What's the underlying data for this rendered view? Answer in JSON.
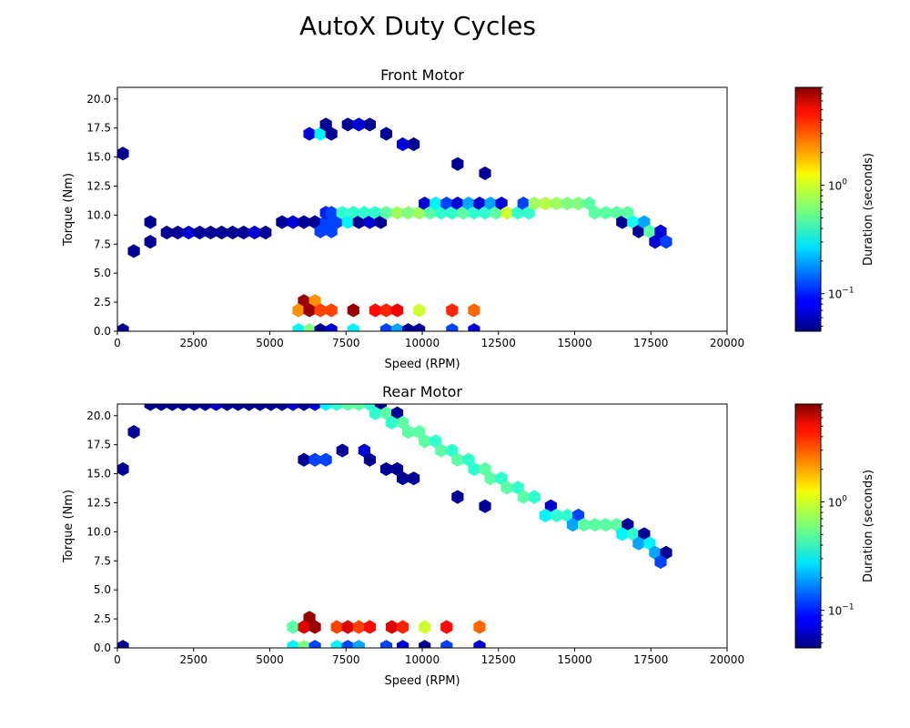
{
  "figure_title": "AutoX Duty Cycles",
  "colormap": "jet",
  "colorbar": {
    "label": "Duration (seconds)",
    "scale": "log",
    "range": [
      0.045,
      8.0
    ],
    "tick_values": [
      0.1,
      1
    ],
    "tick_labels": [
      {
        "base": "10",
        "exp": "−1"
      },
      {
        "base": "10",
        "exp": "0"
      }
    ]
  },
  "chart_data": [
    {
      "type": "heatmap",
      "subtype": "hexbin",
      "title": "Front Motor",
      "xlabel": "Speed (RPM)",
      "ylabel": "Torque (Nm)",
      "xlim": [
        0,
        20000
      ],
      "ylim": [
        0,
        21
      ],
      "xticks": [
        0,
        2500,
        5000,
        7500,
        10000,
        12500,
        15000,
        17500,
        20000
      ],
      "xtick_labels": [
        "0",
        "2500",
        "5000",
        "7500",
        "10000",
        "12500",
        "15000",
        "17500",
        "20000"
      ],
      "yticks": [
        0,
        2.5,
        5,
        7.5,
        10,
        12.5,
        15,
        17.5,
        20
      ],
      "ytick_labels": [
        "0.0",
        "2.5",
        "5.0",
        "7.5",
        "10.0",
        "12.5",
        "15.0",
        "17.5",
        "20.0"
      ],
      "grid": false,
      "value_label": "Duration (seconds)",
      "cells": [
        {
          "x": 180,
          "y": 15.3,
          "v": 0.05
        },
        {
          "x": 180,
          "y": 0.1,
          "v": 0.05
        },
        {
          "x": 540,
          "y": 6.9,
          "v": 0.05
        },
        {
          "x": 1080,
          "y": 9.4,
          "v": 0.05
        },
        {
          "x": 1080,
          "y": 7.7,
          "v": 0.05
        },
        {
          "x": 1620,
          "y": 8.5,
          "v": 0.05
        },
        {
          "x": 1980,
          "y": 8.5,
          "v": 0.05
        },
        {
          "x": 2340,
          "y": 8.5,
          "v": 0.07
        },
        {
          "x": 2700,
          "y": 8.5,
          "v": 0.05
        },
        {
          "x": 3060,
          "y": 8.5,
          "v": 0.05
        },
        {
          "x": 3420,
          "y": 8.5,
          "v": 0.05
        },
        {
          "x": 3780,
          "y": 8.5,
          "v": 0.05
        },
        {
          "x": 4140,
          "y": 8.5,
          "v": 0.05
        },
        {
          "x": 4500,
          "y": 8.5,
          "v": 0.07
        },
        {
          "x": 4860,
          "y": 8.5,
          "v": 0.05
        },
        {
          "x": 5400,
          "y": 9.4,
          "v": 0.05
        },
        {
          "x": 5760,
          "y": 9.4,
          "v": 0.07
        },
        {
          "x": 6120,
          "y": 9.4,
          "v": 0.05
        },
        {
          "x": 6480,
          "y": 9.4,
          "v": 0.05
        },
        {
          "x": 6660,
          "y": 8.6,
          "v": 0.12
        },
        {
          "x": 6840,
          "y": 9.4,
          "v": 0.12
        },
        {
          "x": 6840,
          "y": 10.2,
          "v": 0.1
        },
        {
          "x": 7020,
          "y": 8.6,
          "v": 0.12
        },
        {
          "x": 7200,
          "y": 9.4,
          "v": 0.12
        },
        {
          "x": 7020,
          "y": 10.2,
          "v": 0.12
        },
        {
          "x": 7380,
          "y": 10.2,
          "v": 0.4
        },
        {
          "x": 7560,
          "y": 9.4,
          "v": 0.3
        },
        {
          "x": 7740,
          "y": 10.2,
          "v": 0.4
        },
        {
          "x": 7920,
          "y": 9.4,
          "v": 0.05
        },
        {
          "x": 8100,
          "y": 10.2,
          "v": 0.4
        },
        {
          "x": 8280,
          "y": 9.4,
          "v": 0.07
        },
        {
          "x": 8460,
          "y": 10.2,
          "v": 0.4
        },
        {
          "x": 8640,
          "y": 9.4,
          "v": 0.05
        },
        {
          "x": 8820,
          "y": 10.2,
          "v": 0.5
        },
        {
          "x": 9180,
          "y": 10.2,
          "v": 0.7
        },
        {
          "x": 9540,
          "y": 10.2,
          "v": 0.6
        },
        {
          "x": 9900,
          "y": 10.2,
          "v": 0.7
        },
        {
          "x": 10080,
          "y": 11.0,
          "v": 0.07
        },
        {
          "x": 10260,
          "y": 10.2,
          "v": 0.5
        },
        {
          "x": 10440,
          "y": 11.0,
          "v": 0.3
        },
        {
          "x": 10620,
          "y": 10.2,
          "v": 0.4
        },
        {
          "x": 10800,
          "y": 11.0,
          "v": 0.12
        },
        {
          "x": 10980,
          "y": 10.2,
          "v": 0.4
        },
        {
          "x": 11160,
          "y": 11.0,
          "v": 0.07
        },
        {
          "x": 11340,
          "y": 10.2,
          "v": 0.5
        },
        {
          "x": 11520,
          "y": 11.0,
          "v": 0.2
        },
        {
          "x": 11700,
          "y": 10.2,
          "v": 0.4
        },
        {
          "x": 11880,
          "y": 11.0,
          "v": 0.07
        },
        {
          "x": 12060,
          "y": 10.2,
          "v": 0.4
        },
        {
          "x": 12240,
          "y": 11.0,
          "v": 0.2
        },
        {
          "x": 12420,
          "y": 10.2,
          "v": 0.5
        },
        {
          "x": 12600,
          "y": 11.0,
          "v": 0.07
        },
        {
          "x": 12780,
          "y": 10.2,
          "v": 0.9
        },
        {
          "x": 13140,
          "y": 10.2,
          "v": 0.4
        },
        {
          "x": 13320,
          "y": 11.0,
          "v": 0.12
        },
        {
          "x": 13500,
          "y": 10.2,
          "v": 0.4
        },
        {
          "x": 13680,
          "y": 11.0,
          "v": 0.7
        },
        {
          "x": 14040,
          "y": 11.0,
          "v": 0.8
        },
        {
          "x": 14400,
          "y": 11.0,
          "v": 0.7
        },
        {
          "x": 14760,
          "y": 11.0,
          "v": 0.6
        },
        {
          "x": 15120,
          "y": 11.0,
          "v": 0.6
        },
        {
          "x": 15480,
          "y": 11.0,
          "v": 0.5
        },
        {
          "x": 15660,
          "y": 10.2,
          "v": 0.5
        },
        {
          "x": 16020,
          "y": 10.2,
          "v": 0.5
        },
        {
          "x": 16380,
          "y": 10.2,
          "v": 0.5
        },
        {
          "x": 16560,
          "y": 9.4,
          "v": 0.05
        },
        {
          "x": 16740,
          "y": 10.2,
          "v": 0.5
        },
        {
          "x": 16920,
          "y": 9.4,
          "v": 0.35
        },
        {
          "x": 17100,
          "y": 8.6,
          "v": 0.05
        },
        {
          "x": 17280,
          "y": 9.4,
          "v": 0.2
        },
        {
          "x": 17460,
          "y": 8.6,
          "v": 0.5
        },
        {
          "x": 17640,
          "y": 7.7,
          "v": 0.07
        },
        {
          "x": 17820,
          "y": 8.6,
          "v": 0.07
        },
        {
          "x": 18000,
          "y": 7.7,
          "v": 0.12
        },
        {
          "x": 6300,
          "y": 17.0,
          "v": 0.07
        },
        {
          "x": 6660,
          "y": 17.0,
          "v": 0.3
        },
        {
          "x": 6840,
          "y": 17.8,
          "v": 0.05
        },
        {
          "x": 7020,
          "y": 17.0,
          "v": 0.05
        },
        {
          "x": 7560,
          "y": 17.8,
          "v": 0.05
        },
        {
          "x": 7920,
          "y": 17.8,
          "v": 0.07
        },
        {
          "x": 8280,
          "y": 17.8,
          "v": 0.05
        },
        {
          "x": 8820,
          "y": 17.0,
          "v": 0.05
        },
        {
          "x": 9360,
          "y": 16.1,
          "v": 0.07
        },
        {
          "x": 9720,
          "y": 16.1,
          "v": 0.05
        },
        {
          "x": 11160,
          "y": 14.4,
          "v": 0.05
        },
        {
          "x": 12060,
          "y": 13.6,
          "v": 0.05
        },
        {
          "x": 6120,
          "y": 2.6,
          "v": 7.0
        },
        {
          "x": 6480,
          "y": 2.6,
          "v": 2.0
        },
        {
          "x": 5940,
          "y": 1.8,
          "v": 2.0
        },
        {
          "x": 6300,
          "y": 1.8,
          "v": 7.0
        },
        {
          "x": 6660,
          "y": 1.8,
          "v": 3.0
        },
        {
          "x": 7020,
          "y": 1.8,
          "v": 3.0
        },
        {
          "x": 7740,
          "y": 1.8,
          "v": 7.0
        },
        {
          "x": 8460,
          "y": 1.8,
          "v": 4.0
        },
        {
          "x": 8820,
          "y": 1.8,
          "v": 3.5
        },
        {
          "x": 9180,
          "y": 1.8,
          "v": 4.5
        },
        {
          "x": 9900,
          "y": 1.8,
          "v": 0.9
        },
        {
          "x": 10980,
          "y": 1.8,
          "v": 3.5
        },
        {
          "x": 11700,
          "y": 1.8,
          "v": 2.5
        },
        {
          "x": 5940,
          "y": 0.1,
          "v": 0.3
        },
        {
          "x": 6300,
          "y": 0.1,
          "v": 0.6
        },
        {
          "x": 6660,
          "y": 0.1,
          "v": 0.05
        },
        {
          "x": 7020,
          "y": 0.1,
          "v": 0.07
        },
        {
          "x": 7740,
          "y": 0.1,
          "v": 0.3
        },
        {
          "x": 8820,
          "y": 0.1,
          "v": 0.12
        },
        {
          "x": 9180,
          "y": 0.1,
          "v": 0.2
        },
        {
          "x": 9540,
          "y": 0.1,
          "v": 0.05
        },
        {
          "x": 9900,
          "y": 0.1,
          "v": 0.05
        },
        {
          "x": 10980,
          "y": 0.1,
          "v": 0.12
        },
        {
          "x": 11700,
          "y": 0.1,
          "v": 0.07
        }
      ]
    },
    {
      "type": "heatmap",
      "subtype": "hexbin",
      "title": "Rear Motor",
      "xlabel": "Speed (RPM)",
      "ylabel": "Torque (Nm)",
      "xlim": [
        0,
        20000
      ],
      "ylim": [
        0,
        21
      ],
      "xticks": [
        0,
        2500,
        5000,
        7500,
        10000,
        12500,
        15000,
        17500,
        20000
      ],
      "xtick_labels": [
        "0",
        "2500",
        "5000",
        "7500",
        "10000",
        "12500",
        "15000",
        "17500",
        "20000"
      ],
      "yticks": [
        0,
        2.5,
        5,
        7.5,
        10,
        12.5,
        15,
        17.5,
        20
      ],
      "ytick_labels": [
        "0.0",
        "2.5",
        "5.0",
        "7.5",
        "10.0",
        "12.5",
        "15.0",
        "17.5",
        "20.0"
      ],
      "grid": false,
      "value_label": "Duration (seconds)",
      "cells": [
        {
          "x": 180,
          "y": 15.4,
          "v": 0.05
        },
        {
          "x": 180,
          "y": 0.1,
          "v": 0.05
        },
        {
          "x": 540,
          "y": 18.6,
          "v": 0.05
        },
        {
          "x": 1080,
          "y": 21.0,
          "v": 0.05
        },
        {
          "x": 1440,
          "y": 21.0,
          "v": 0.05
        },
        {
          "x": 1800,
          "y": 21.0,
          "v": 0.05
        },
        {
          "x": 2160,
          "y": 21.0,
          "v": 0.05
        },
        {
          "x": 2520,
          "y": 21.0,
          "v": 0.05
        },
        {
          "x": 2880,
          "y": 21.0,
          "v": 0.05
        },
        {
          "x": 3240,
          "y": 21.0,
          "v": 0.07
        },
        {
          "x": 3600,
          "y": 21.0,
          "v": 0.05
        },
        {
          "x": 3960,
          "y": 21.0,
          "v": 0.05
        },
        {
          "x": 4320,
          "y": 21.0,
          "v": 0.05
        },
        {
          "x": 4680,
          "y": 21.0,
          "v": 0.05
        },
        {
          "x": 5040,
          "y": 21.0,
          "v": 0.05
        },
        {
          "x": 5400,
          "y": 21.0,
          "v": 0.05
        },
        {
          "x": 5760,
          "y": 21.0,
          "v": 0.07
        },
        {
          "x": 6120,
          "y": 21.0,
          "v": 0.05
        },
        {
          "x": 6480,
          "y": 21.0,
          "v": 0.07
        },
        {
          "x": 6840,
          "y": 21.0,
          "v": 0.3
        },
        {
          "x": 7200,
          "y": 21.0,
          "v": 0.4
        },
        {
          "x": 7560,
          "y": 21.0,
          "v": 0.5
        },
        {
          "x": 7920,
          "y": 21.0,
          "v": 0.5
        },
        {
          "x": 8280,
          "y": 21.0,
          "v": 0.4
        },
        {
          "x": 8640,
          "y": 21.0,
          "v": 0.05
        },
        {
          "x": 8460,
          "y": 20.2,
          "v": 0.4
        },
        {
          "x": 8820,
          "y": 20.2,
          "v": 0.5
        },
        {
          "x": 9180,
          "y": 20.2,
          "v": 0.05
        },
        {
          "x": 9000,
          "y": 19.4,
          "v": 0.4
        },
        {
          "x": 9360,
          "y": 19.4,
          "v": 0.5
        },
        {
          "x": 9540,
          "y": 18.6,
          "v": 0.5
        },
        {
          "x": 9900,
          "y": 18.6,
          "v": 0.5
        },
        {
          "x": 10080,
          "y": 17.8,
          "v": 0.5
        },
        {
          "x": 10440,
          "y": 17.8,
          "v": 0.4
        },
        {
          "x": 10620,
          "y": 17.0,
          "v": 0.5
        },
        {
          "x": 10980,
          "y": 17.0,
          "v": 0.4
        },
        {
          "x": 11160,
          "y": 16.2,
          "v": 0.5
        },
        {
          "x": 11520,
          "y": 16.2,
          "v": 0.4
        },
        {
          "x": 11700,
          "y": 15.4,
          "v": 0.4
        },
        {
          "x": 12060,
          "y": 15.4,
          "v": 0.5
        },
        {
          "x": 12240,
          "y": 14.6,
          "v": 0.5
        },
        {
          "x": 12600,
          "y": 14.6,
          "v": 0.4
        },
        {
          "x": 12780,
          "y": 13.8,
          "v": 0.5
        },
        {
          "x": 13140,
          "y": 13.8,
          "v": 0.4
        },
        {
          "x": 13320,
          "y": 13.0,
          "v": 0.5
        },
        {
          "x": 13680,
          "y": 13.0,
          "v": 0.4
        },
        {
          "x": 14220,
          "y": 12.2,
          "v": 0.07
        },
        {
          "x": 14040,
          "y": 11.4,
          "v": 0.3
        },
        {
          "x": 14400,
          "y": 11.4,
          "v": 0.4
        },
        {
          "x": 14760,
          "y": 11.4,
          "v": 0.4
        },
        {
          "x": 15120,
          "y": 11.4,
          "v": 0.12
        },
        {
          "x": 14940,
          "y": 10.6,
          "v": 0.2
        },
        {
          "x": 15300,
          "y": 10.6,
          "v": 0.5
        },
        {
          "x": 15660,
          "y": 10.6,
          "v": 0.5
        },
        {
          "x": 16020,
          "y": 10.6,
          "v": 0.5
        },
        {
          "x": 16380,
          "y": 10.6,
          "v": 0.5
        },
        {
          "x": 16740,
          "y": 10.6,
          "v": 0.05
        },
        {
          "x": 16560,
          "y": 9.8,
          "v": 0.3
        },
        {
          "x": 16920,
          "y": 9.8,
          "v": 0.4
        },
        {
          "x": 17280,
          "y": 9.8,
          "v": 0.05
        },
        {
          "x": 17100,
          "y": 9.0,
          "v": 0.2
        },
        {
          "x": 17460,
          "y": 9.0,
          "v": 0.3
        },
        {
          "x": 17640,
          "y": 8.2,
          "v": 0.2
        },
        {
          "x": 18000,
          "y": 8.2,
          "v": 0.05
        },
        {
          "x": 17820,
          "y": 7.4,
          "v": 0.12
        },
        {
          "x": 6120,
          "y": 16.2,
          "v": 0.05
        },
        {
          "x": 6480,
          "y": 16.2,
          "v": 0.12
        },
        {
          "x": 6840,
          "y": 16.2,
          "v": 0.12
        },
        {
          "x": 7380,
          "y": 17.0,
          "v": 0.05
        },
        {
          "x": 8100,
          "y": 17.0,
          "v": 0.07
        },
        {
          "x": 8280,
          "y": 16.2,
          "v": 0.05
        },
        {
          "x": 8820,
          "y": 15.4,
          "v": 0.05
        },
        {
          "x": 9180,
          "y": 15.4,
          "v": 0.05
        },
        {
          "x": 9360,
          "y": 14.6,
          "v": 0.05
        },
        {
          "x": 9720,
          "y": 14.6,
          "v": 0.05
        },
        {
          "x": 11160,
          "y": 13.0,
          "v": 0.05
        },
        {
          "x": 12060,
          "y": 12.2,
          "v": 0.05
        },
        {
          "x": 6300,
          "y": 2.6,
          "v": 7.0
        },
        {
          "x": 5760,
          "y": 1.8,
          "v": 0.5
        },
        {
          "x": 6120,
          "y": 1.8,
          "v": 5.0
        },
        {
          "x": 6480,
          "y": 1.8,
          "v": 7.0
        },
        {
          "x": 7200,
          "y": 1.8,
          "v": 3.0
        },
        {
          "x": 7560,
          "y": 1.8,
          "v": 5.0
        },
        {
          "x": 7920,
          "y": 1.8,
          "v": 3.0
        },
        {
          "x": 8280,
          "y": 1.8,
          "v": 4.0
        },
        {
          "x": 9000,
          "y": 1.8,
          "v": 5.0
        },
        {
          "x": 9360,
          "y": 1.8,
          "v": 3.5
        },
        {
          "x": 10080,
          "y": 1.8,
          "v": 0.9
        },
        {
          "x": 10800,
          "y": 1.8,
          "v": 4.0
        },
        {
          "x": 11880,
          "y": 1.8,
          "v": 2.5
        },
        {
          "x": 5760,
          "y": 0.1,
          "v": 0.3
        },
        {
          "x": 6120,
          "y": 0.1,
          "v": 0.6
        },
        {
          "x": 6480,
          "y": 0.1,
          "v": 0.12
        },
        {
          "x": 7200,
          "y": 0.1,
          "v": 0.3
        },
        {
          "x": 7560,
          "y": 0.1,
          "v": 0.12
        },
        {
          "x": 7920,
          "y": 0.1,
          "v": 0.2
        },
        {
          "x": 8820,
          "y": 0.1,
          "v": 0.12
        },
        {
          "x": 9360,
          "y": 0.1,
          "v": 0.07
        },
        {
          "x": 10080,
          "y": 0.1,
          "v": 0.05
        },
        {
          "x": 10800,
          "y": 0.1,
          "v": 0.12
        },
        {
          "x": 11880,
          "y": 0.1,
          "v": 0.07
        }
      ]
    }
  ]
}
